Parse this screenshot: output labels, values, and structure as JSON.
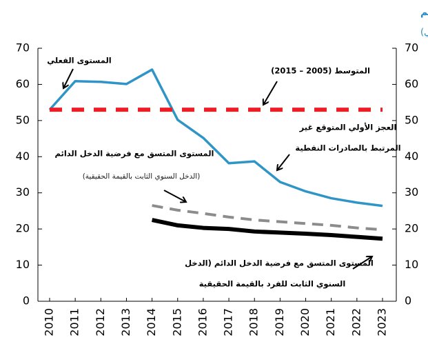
{
  "chart_data": {
    "type": "line",
    "title": "العجز الأولي غير النفطي المتوقع والمتسق مع فرضية الدخل الدائم",
    "subtitle": "(% من إجمالي الناتج المحلي غير النفطي)",
    "categories": [
      "2010",
      "2011",
      "2012",
      "2013",
      "2014",
      "2015",
      "2016",
      "2017",
      "2018",
      "2019",
      "2020",
      "2021",
      "2022",
      "2023"
    ],
    "series": [
      {
        "name": "المستوى الفعلي",
        "color": "#2f94c6",
        "dash": "solid",
        "values": [
          53,
          60.9,
          60.7,
          60.1,
          64.1,
          50.2,
          45.2,
          38.2,
          38.7,
          33.0,
          30.4,
          28.5,
          27.3,
          26.4
        ]
      },
      {
        "name": "المتوسط (2005 – 2015)",
        "color": "#ee1c25",
        "dash": "dashed",
        "values": [
          53,
          53,
          53,
          53,
          53,
          53,
          53,
          53,
          53,
          53,
          53,
          53,
          53,
          53
        ]
      },
      {
        "name": "المستوى المتسق مع فرضية الدخل الدائم",
        "color": "#8c8c8c",
        "dash": "dashed",
        "values": [
          null,
          null,
          null,
          null,
          26.5,
          25.2,
          24.3,
          23.3,
          22.5,
          22.0,
          21.5,
          21.0,
          20.3,
          19.8
        ]
      },
      {
        "name": "المستوى المتسق مع فرضية الدخل الدائم (الدخل السنوي الثابت للفرد بالقيمة الحقيقية)",
        "color": "#000000",
        "dash": "solid",
        "values": [
          null,
          null,
          null,
          null,
          22.5,
          21.0,
          20.3,
          20.0,
          19.3,
          19.0,
          18.7,
          18.3,
          17.8,
          17.3
        ]
      }
    ],
    "annotations": [
      "المستوى الفعلي",
      "المتوسط (2005 – 2015)",
      "العجز الأولي المتوقع غير",
      "المرتبط بالصادرات النفطية",
      "المستوى المتسق مع فرضية الدخل الدائم",
      "(الدخل السنوي الثابت بالقيمة الحقيقية)",
      "المستوى المتسق مع فرضية الدخل الدائم (الدخل",
      "السنوي الثابت للفرد بالقيمة الحقيقية"
    ],
    "ylim": [
      0,
      70
    ],
    "yticks": [
      0,
      10,
      20,
      30,
      40,
      50,
      60,
      70
    ],
    "y2lim": [
      0,
      70
    ],
    "y2ticks": [
      0,
      10,
      20,
      30,
      40,
      50,
      60,
      70
    ],
    "grid": false
  }
}
